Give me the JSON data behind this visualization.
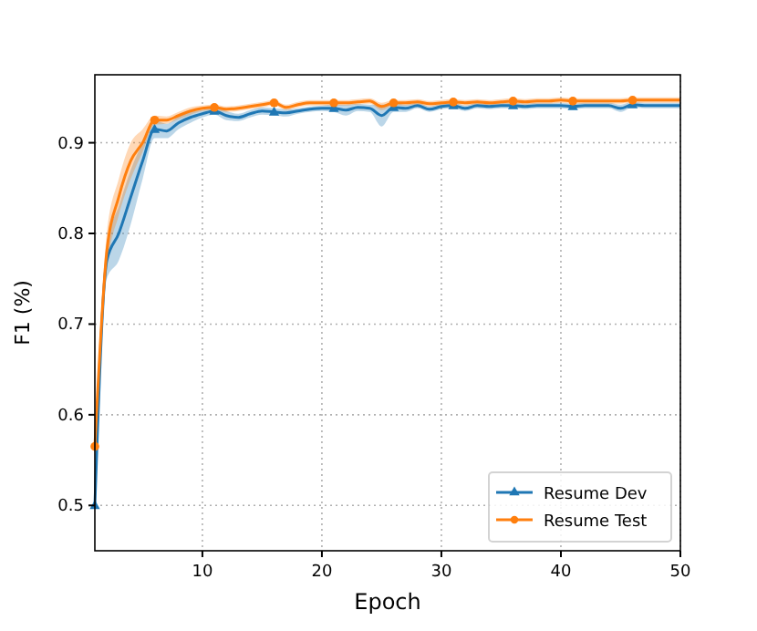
{
  "chart_data": {
    "type": "line",
    "xlabel": "Epoch",
    "ylabel": "F1 (%)",
    "xlim": [
      1,
      50
    ],
    "ylim": [
      0.45,
      0.975
    ],
    "xticks": [
      10,
      20,
      30,
      40,
      50
    ],
    "yticks": [
      0.5,
      0.6,
      0.7,
      0.8,
      0.9
    ],
    "grid": true,
    "legend": "bottom right",
    "x": [
      1,
      2,
      3,
      4,
      5,
      6,
      7,
      8,
      9,
      10,
      11,
      12,
      13,
      14,
      15,
      16,
      17,
      18,
      19,
      20,
      21,
      22,
      23,
      24,
      25,
      26,
      27,
      28,
      29,
      30,
      31,
      32,
      33,
      34,
      35,
      36,
      37,
      38,
      39,
      40,
      41,
      42,
      43,
      44,
      45,
      46,
      47,
      48,
      49,
      50
    ],
    "series": [
      {
        "name": "Resume Dev",
        "color": "#1f77b4",
        "values": [
          0.5,
          0.77,
          0.8,
          0.84,
          0.88,
          0.915,
          0.913,
          0.922,
          0.928,
          0.932,
          0.935,
          0.93,
          0.928,
          0.932,
          0.935,
          0.934,
          0.933,
          0.935,
          0.937,
          0.938,
          0.938,
          0.936,
          0.939,
          0.938,
          0.93,
          0.939,
          0.938,
          0.941,
          0.937,
          0.94,
          0.941,
          0.938,
          0.941,
          0.94,
          0.941,
          0.941,
          0.94,
          0.941,
          0.941,
          0.941,
          0.94,
          0.941,
          0.941,
          0.941,
          0.938,
          0.942,
          0.941,
          0.941,
          0.941,
          0.941
        ],
        "lower": [
          0.49,
          0.75,
          0.77,
          0.81,
          0.86,
          0.905,
          0.905,
          0.915,
          0.922,
          0.928,
          0.931,
          0.925,
          0.924,
          0.928,
          0.931,
          0.93,
          0.929,
          0.932,
          0.934,
          0.935,
          0.934,
          0.93,
          0.935,
          0.934,
          0.918,
          0.934,
          0.934,
          0.938,
          0.934,
          0.937,
          0.938,
          0.935,
          0.938,
          0.937,
          0.938,
          0.938,
          0.937,
          0.938,
          0.938,
          0.938,
          0.937,
          0.938,
          0.938,
          0.938,
          0.934,
          0.939,
          0.938,
          0.938,
          0.938,
          0.938
        ],
        "upper": [
          0.51,
          0.79,
          0.83,
          0.87,
          0.9,
          0.925,
          0.921,
          0.929,
          0.934,
          0.936,
          0.939,
          0.935,
          0.932,
          0.936,
          0.939,
          0.938,
          0.937,
          0.938,
          0.94,
          0.941,
          0.942,
          0.942,
          0.943,
          0.942,
          0.942,
          0.944,
          0.942,
          0.944,
          0.94,
          0.943,
          0.944,
          0.941,
          0.944,
          0.943,
          0.944,
          0.944,
          0.943,
          0.944,
          0.944,
          0.944,
          0.943,
          0.944,
          0.944,
          0.944,
          0.942,
          0.945,
          0.944,
          0.944,
          0.944,
          0.944
        ]
      },
      {
        "name": "Resume Test",
        "color": "#ff7f0e",
        "values": [
          0.565,
          0.78,
          0.84,
          0.88,
          0.9,
          0.925,
          0.925,
          0.93,
          0.935,
          0.938,
          0.939,
          0.937,
          0.938,
          0.94,
          0.942,
          0.944,
          0.939,
          0.942,
          0.944,
          0.944,
          0.944,
          0.944,
          0.945,
          0.946,
          0.94,
          0.944,
          0.944,
          0.945,
          0.943,
          0.944,
          0.945,
          0.944,
          0.945,
          0.944,
          0.945,
          0.946,
          0.945,
          0.946,
          0.946,
          0.947,
          0.946,
          0.946,
          0.946,
          0.946,
          0.946,
          0.947,
          0.947,
          0.947,
          0.947,
          0.947
        ],
        "lower": [
          0.555,
          0.76,
          0.82,
          0.86,
          0.89,
          0.92,
          0.921,
          0.926,
          0.931,
          0.935,
          0.936,
          0.934,
          0.935,
          0.937,
          0.939,
          0.941,
          0.936,
          0.939,
          0.941,
          0.941,
          0.941,
          0.941,
          0.942,
          0.943,
          0.936,
          0.941,
          0.941,
          0.942,
          0.94,
          0.941,
          0.942,
          0.941,
          0.942,
          0.941,
          0.942,
          0.943,
          0.942,
          0.943,
          0.943,
          0.944,
          0.943,
          0.943,
          0.943,
          0.943,
          0.943,
          0.944,
          0.944,
          0.944,
          0.944,
          0.944
        ],
        "upper": [
          0.575,
          0.8,
          0.86,
          0.9,
          0.915,
          0.93,
          0.929,
          0.934,
          0.939,
          0.941,
          0.942,
          0.94,
          0.941,
          0.943,
          0.945,
          0.947,
          0.942,
          0.945,
          0.947,
          0.947,
          0.947,
          0.947,
          0.948,
          0.949,
          0.944,
          0.947,
          0.947,
          0.948,
          0.946,
          0.947,
          0.948,
          0.947,
          0.948,
          0.947,
          0.948,
          0.949,
          0.948,
          0.949,
          0.949,
          0.95,
          0.949,
          0.949,
          0.949,
          0.949,
          0.949,
          0.95,
          0.95,
          0.95,
          0.95,
          0.95
        ]
      },
      {
        "type": "scatter",
        "color": "#1f77b4",
        "marker": "triangle",
        "x": [
          1,
          6,
          11,
          16,
          21,
          26,
          31,
          36,
          41,
          46
        ],
        "values": [
          0.5,
          0.915,
          0.935,
          0.934,
          0.938,
          0.939,
          0.941,
          0.941,
          0.94,
          0.942
        ]
      },
      {
        "type": "scatter",
        "color": "#ff7f0e",
        "marker": "circle",
        "x": [
          1,
          6,
          11,
          16,
          21,
          26,
          31,
          36,
          41,
          46
        ],
        "values": [
          0.565,
          0.925,
          0.939,
          0.944,
          0.944,
          0.944,
          0.945,
          0.946,
          0.946,
          0.947
        ]
      }
    ]
  }
}
